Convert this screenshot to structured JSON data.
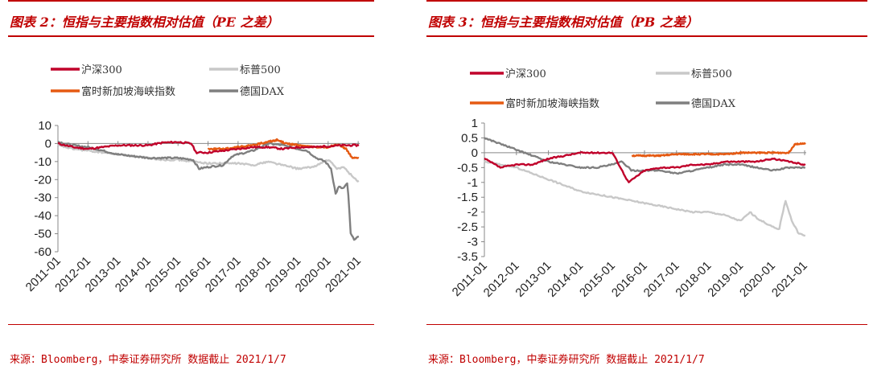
{
  "charts": [
    {
      "title": "图表 2：恒指与主要指数相对估值（PE 之差）",
      "source": "来源：Bloomberg，中泰证券研究所 数据截止 2021/1/7",
      "chart_data": {
        "type": "line",
        "ylim": [
          -60,
          10
        ],
        "yticks": [
          10,
          0,
          -10,
          -20,
          -30,
          -40,
          -50,
          -60
        ],
        "x_range": [
          "2011-01",
          "2021-01"
        ],
        "x_ticks": [
          "2011-01",
          "2012-01",
          "2013-01",
          "2014-01",
          "2015-01",
          "2016-01",
          "2017-01",
          "2018-01",
          "2019-01",
          "2020-01",
          "2021-01"
        ],
        "xlabel": "",
        "ylabel": "",
        "grid": false,
        "legend": "top-left",
        "series": [
          {
            "name": "沪深300",
            "color": "#c0002a",
            "start": 2011.0,
            "end": 2021.02,
            "x": [
              2011.0,
              2011.5,
              2012.0,
              2012.5,
              2013.0,
              2013.5,
              2014.0,
              2014.5,
              2015.0,
              2015.45,
              2015.6,
              2016.0,
              2016.5,
              2017.0,
              2017.5,
              2018.0,
              2018.5,
              2019.0,
              2019.5,
              2020.0,
              2020.5,
              2021.0
            ],
            "y": [
              0,
              -2,
              -3,
              -2,
              -1,
              -1,
              -1,
              0.5,
              0.8,
              0,
              -5,
              -5,
              -4,
              -3,
              -2,
              -2,
              -3,
              -2,
              -2,
              -1.5,
              -1,
              -1
            ]
          },
          {
            "name": "标普500",
            "color": "#c8c8c8",
            "start": 2011.0,
            "end": 2021.02,
            "x": [
              2011.0,
              2011.5,
              2012.0,
              2012.5,
              2013.0,
              2013.5,
              2014.0,
              2014.5,
              2015.0,
              2015.5,
              2016.0,
              2016.5,
              2017.0,
              2017.5,
              2018.0,
              2018.5,
              2019.0,
              2019.5,
              2020.0,
              2020.3,
              2020.5,
              2020.8,
              2021.0
            ],
            "y": [
              -1,
              -3,
              -4,
              -5,
              -6,
              -7,
              -8,
              -9,
              -9,
              -10,
              -11,
              -11,
              -11,
              -12,
              -10,
              -12,
              -14,
              -13,
              -9,
              -14,
              -13,
              -18,
              -21
            ]
          },
          {
            "name": "富时新加坡海峡指数",
            "color": "#e55a12",
            "start": 2016.0,
            "end": 2021.02,
            "x": [
              2016.0,
              2016.5,
              2017.0,
              2017.5,
              2018.0,
              2018.3,
              2018.6,
              2019.0,
              2019.5,
              2020.0,
              2020.2,
              2020.4,
              2020.6,
              2020.8,
              2021.0
            ],
            "y": [
              -3,
              -3,
              -2,
              -1,
              1,
              2,
              0,
              -1,
              -2,
              -2,
              -1,
              -1,
              -3,
              -8,
              -8
            ]
          },
          {
            "name": "德国DAX",
            "color": "#7f7f7f",
            "start": 2011.0,
            "end": 2021.02,
            "x": [
              2011.0,
              2011.5,
              2012.0,
              2012.5,
              2013.0,
              2013.5,
              2014.0,
              2014.5,
              2015.0,
              2015.5,
              2015.7,
              2016.0,
              2016.5,
              2016.8,
              2017.0,
              2017.5,
              2018.0,
              2018.5,
              2019.0,
              2019.3,
              2019.6,
              2019.9,
              2020.1,
              2020.25,
              2020.35,
              2020.5,
              2020.65,
              2020.75,
              2020.85,
              2021.0
            ],
            "y": [
              1,
              -1,
              -2,
              -4,
              -6,
              -7,
              -8,
              -8,
              -8,
              -9,
              -14,
              -13,
              -12,
              -7,
              -6,
              -4,
              0,
              -1,
              -3,
              -4,
              -8,
              -10,
              -14,
              -28,
              -24,
              -25,
              -22,
              -50,
              -53,
              -52
            ]
          }
        ]
      }
    },
    {
      "title": "图表 3：恒指与主要指数相对估值（PB 之差）",
      "source": "来源：Bloomberg，中泰证券研究所 数据截止 2021/1/7",
      "chart_data": {
        "type": "line",
        "ylim": [
          -3.5,
          1
        ],
        "yticks": [
          "1",
          "0.5",
          "0",
          "-0.5",
          "-1",
          "-1.5",
          "-2",
          "-2.5",
          "-3",
          "-3.5"
        ],
        "x_range": [
          "2011-01",
          "2021-01"
        ],
        "x_ticks": [
          "2011-01",
          "2012-01",
          "2013-01",
          "2014-01",
          "2015-01",
          "2016-01",
          "2017-01",
          "2018-01",
          "2019-01",
          "2020-01",
          "2021-01"
        ],
        "xlabel": "",
        "ylabel": "",
        "grid": false,
        "legend": "top-left",
        "series": [
          {
            "name": "沪深300",
            "color": "#c0002a",
            "start": 2011.0,
            "end": 2021.02,
            "x": [
              2011.0,
              2011.5,
              2012.0,
              2012.5,
              2013.0,
              2013.5,
              2014.0,
              2014.5,
              2015.0,
              2015.3,
              2015.5,
              2016.0,
              2016.5,
              2017.0,
              2017.5,
              2018.0,
              2018.5,
              2019.0,
              2019.5,
              2020.0,
              2020.5,
              2021.0
            ],
            "y": [
              -0.2,
              -0.5,
              -0.4,
              -0.4,
              -0.2,
              -0.1,
              0,
              0,
              0,
              -0.6,
              -1,
              -0.6,
              -0.5,
              -0.5,
              -0.4,
              -0.4,
              -0.3,
              -0.3,
              -0.3,
              -0.2,
              -0.3,
              -0.4
            ]
          },
          {
            "name": "标普500",
            "color": "#c8c8c8",
            "start": 2011.0,
            "end": 2021.02,
            "x": [
              2011.0,
              2011.5,
              2012.0,
              2012.5,
              2013.0,
              2013.5,
              2014.0,
              2014.5,
              2015.0,
              2015.5,
              2016.0,
              2016.5,
              2017.0,
              2017.5,
              2018.0,
              2018.5,
              2019.0,
              2019.3,
              2019.5,
              2020.0,
              2020.2,
              2020.4,
              2020.6,
              2020.8,
              2021.0
            ],
            "y": [
              -0.3,
              -0.4,
              -0.5,
              -0.7,
              -0.9,
              -1.1,
              -1.3,
              -1.4,
              -1.5,
              -1.6,
              -1.7,
              -1.8,
              -1.9,
              -2.0,
              -2.0,
              -2.1,
              -2.3,
              -2.0,
              -2.2,
              -2.5,
              -2.6,
              -1.6,
              -2.3,
              -2.7,
              -2.8
            ]
          },
          {
            "name": "富时新加坡海峡指数",
            "color": "#e55a12",
            "start": 2015.6,
            "end": 2021.02,
            "x": [
              2015.6,
              2016.0,
              2016.5,
              2017.0,
              2017.5,
              2018.0,
              2018.5,
              2019.0,
              2019.5,
              2020.0,
              2020.5,
              2020.7,
              2021.0
            ],
            "y": [
              -0.1,
              -0.1,
              -0.1,
              -0.05,
              -0.05,
              -0.05,
              -0.05,
              0,
              0,
              0,
              0,
              0.3,
              0.3
            ]
          },
          {
            "name": "德国DAX",
            "color": "#7f7f7f",
            "start": 2011.0,
            "end": 2021.02,
            "x": [
              2011.0,
              2011.5,
              2012.0,
              2012.5,
              2013.0,
              2013.5,
              2014.0,
              2014.5,
              2015.0,
              2015.3,
              2015.6,
              2016.0,
              2016.5,
              2017.0,
              2017.5,
              2018.0,
              2018.5,
              2019.0,
              2019.5,
              2020.0,
              2020.5,
              2021.0
            ],
            "y": [
              0.5,
              0.3,
              0.1,
              -0.1,
              -0.3,
              -0.4,
              -0.5,
              -0.5,
              -0.4,
              -0.3,
              -0.6,
              -0.6,
              -0.6,
              -0.7,
              -0.6,
              -0.5,
              -0.4,
              -0.4,
              -0.5,
              -0.6,
              -0.5,
              -0.5
            ]
          }
        ]
      }
    }
  ]
}
